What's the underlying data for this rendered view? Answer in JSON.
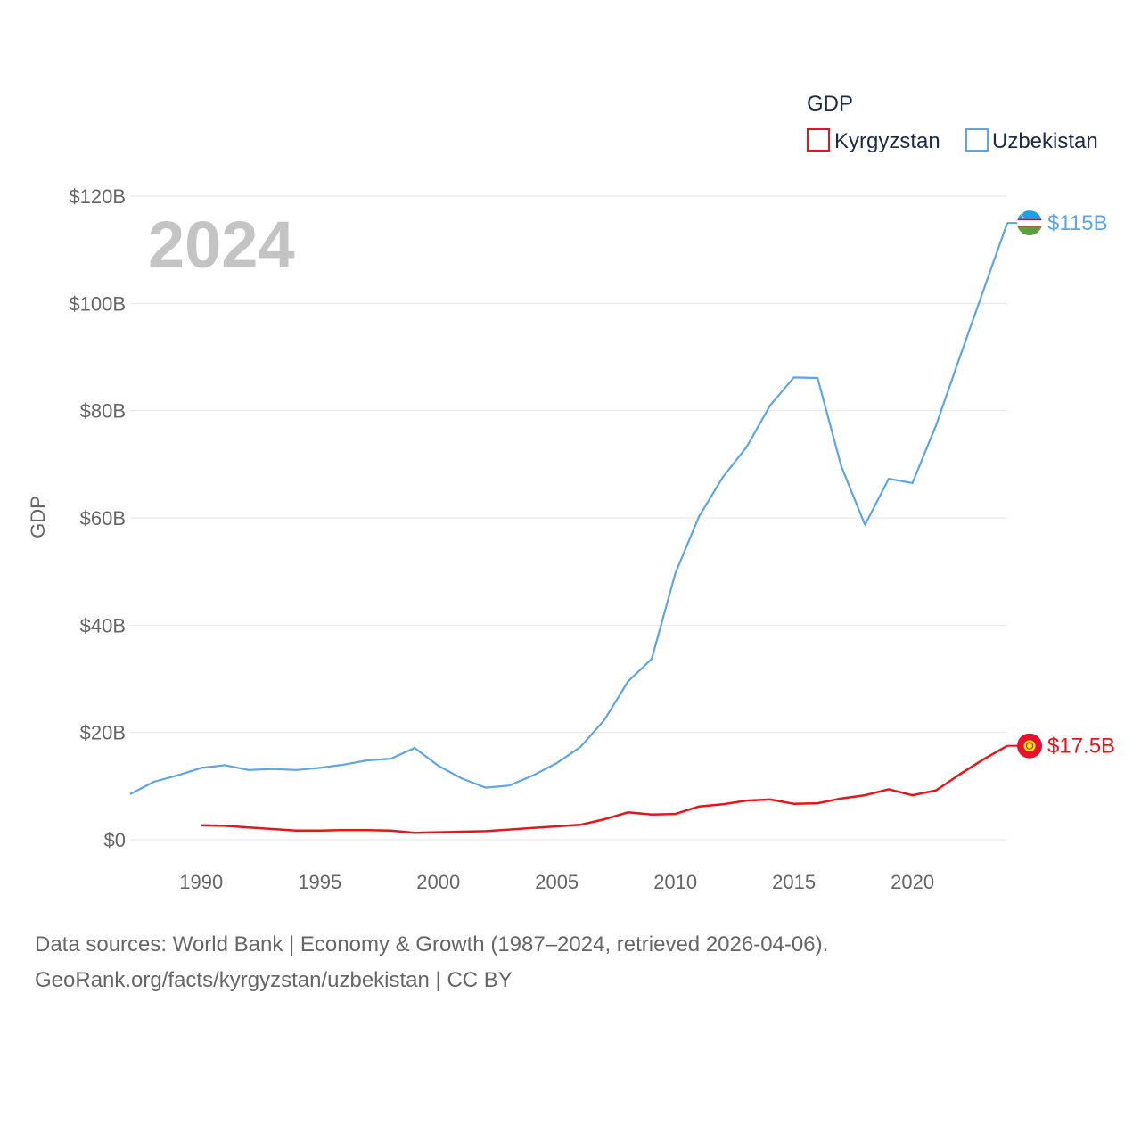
{
  "chart_data": {
    "type": "line",
    "legend_title": "GDP",
    "legend_placement": "top-right",
    "ylabel": "GDP",
    "xlabel": "",
    "year_label": "2024",
    "xlim": [
      1987,
      2024
    ],
    "ylim": [
      0,
      120
    ],
    "x_ticks": [
      1990,
      1995,
      2000,
      2005,
      2010,
      2015,
      2020
    ],
    "x_tick_labels": [
      "1990",
      "1995",
      "2000",
      "2005",
      "2010",
      "2015",
      "2020"
    ],
    "y_ticks": [
      0,
      20,
      40,
      60,
      80,
      100,
      120
    ],
    "y_tick_labels": [
      "$0",
      "$20B",
      "$40B",
      "$60B",
      "$80B",
      "$100B",
      "$120B"
    ],
    "grid": true,
    "series": [
      {
        "name": "Kyrgyzstan",
        "color": "#e8141c",
        "flag": "kyrgyzstan-flag-icon",
        "end_label": "$17.5B",
        "x": [
          1990,
          1991,
          1992,
          1993,
          1994,
          1995,
          1996,
          1997,
          1998,
          1999,
          2000,
          2001,
          2002,
          2003,
          2004,
          2005,
          2006,
          2007,
          2008,
          2009,
          2010,
          2011,
          2012,
          2013,
          2014,
          2015,
          2016,
          2017,
          2018,
          2019,
          2020,
          2021,
          2022,
          2023,
          2024
        ],
        "values": [
          2.7,
          2.6,
          2.3,
          2.0,
          1.7,
          1.7,
          1.8,
          1.8,
          1.7,
          1.3,
          1.4,
          1.5,
          1.6,
          1.9,
          2.2,
          2.5,
          2.8,
          3.8,
          5.1,
          4.7,
          4.8,
          6.2,
          6.6,
          7.3,
          7.5,
          6.7,
          6.8,
          7.7,
          8.3,
          9.4,
          8.3,
          9.2,
          12.2,
          15.0,
          17.5
        ]
      },
      {
        "name": "Uzbekistan",
        "color": "#5da5e3",
        "flag": "uzbekistan-flag-icon",
        "end_label": "$115B",
        "x": [
          1987,
          1988,
          1989,
          1990,
          1991,
          1992,
          1993,
          1994,
          1995,
          1996,
          1997,
          1998,
          1999,
          2000,
          2001,
          2002,
          2003,
          2004,
          2005,
          2006,
          2007,
          2008,
          2009,
          2010,
          2011,
          2012,
          2013,
          2014,
          2015,
          2016,
          2017,
          2018,
          2019,
          2020,
          2021,
          2022,
          2023,
          2024
        ],
        "values": [
          8.5,
          10.8,
          12.0,
          13.4,
          13.9,
          13.0,
          13.2,
          13.0,
          13.4,
          14.0,
          14.8,
          15.1,
          17.1,
          13.8,
          11.4,
          9.7,
          10.1,
          12.0,
          14.3,
          17.3,
          22.3,
          29.5,
          33.7,
          49.7,
          60.3,
          67.6,
          73.2,
          81.0,
          86.2,
          86.1,
          69.6,
          58.7,
          67.3,
          66.5,
          77.3,
          90.0,
          102.5,
          115.0
        ]
      }
    ]
  },
  "footer": {
    "sources": "Data sources: World Bank | Economy & Growth (1987–2024, retrieved 2026-04-06).",
    "url": "GeoRank.org/facts/kyrgyzstan/uzbekistan | CC BY"
  }
}
